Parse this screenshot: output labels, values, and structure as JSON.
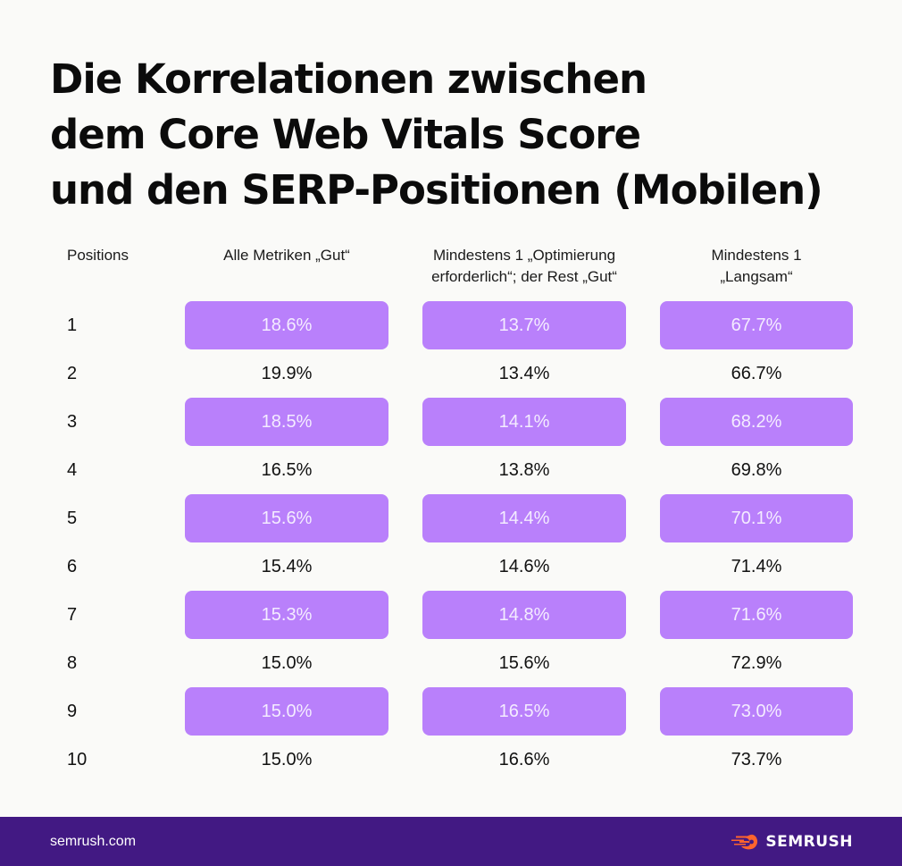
{
  "title": {
    "lines": [
      "Die Korrelationen zwischen",
      "dem Core Web Vitals Score",
      "und den SERP-Positionen (Mobilen)"
    ]
  },
  "colors": {
    "highlight": "#b980fb",
    "footer": "#421983",
    "logo_accent": "#ff642d"
  },
  "chart_data": {
    "type": "table",
    "title": "Die Korrelationen zwischen dem Core Web Vitals Score und den SERP-Positionen (Mobilen)",
    "columns": [
      "Positions",
      "Alle Metriken „Gut“",
      "Mindestens 1 „Optimierung erforderlich“; der Rest „Gut“",
      "Mindestens 1 „Langsam“"
    ],
    "header_lines": {
      "positions": [
        "Positions"
      ],
      "c1": [
        "Alle Metriken „Gut“"
      ],
      "c2": [
        "Mindestens 1 „Optimierung",
        "erforderlich“; der Rest „Gut“"
      ],
      "c3": [
        "Mindestens 1",
        "„Langsam“"
      ]
    },
    "rows": [
      {
        "position": "1",
        "c1": "18.6%",
        "c2": "13.7%",
        "c3": "67.7%",
        "highlighted": true
      },
      {
        "position": "2",
        "c1": "19.9%",
        "c2": "13.4%",
        "c3": "66.7%",
        "highlighted": false
      },
      {
        "position": "3",
        "c1": "18.5%",
        "c2": "14.1%",
        "c3": "68.2%",
        "highlighted": true
      },
      {
        "position": "4",
        "c1": "16.5%",
        "c2": "13.8%",
        "c3": "69.8%",
        "highlighted": false
      },
      {
        "position": "5",
        "c1": "15.6%",
        "c2": "14.4%",
        "c3": "70.1%",
        "highlighted": true
      },
      {
        "position": "6",
        "c1": "15.4%",
        "c2": "14.6%",
        "c3": "71.4%",
        "highlighted": false
      },
      {
        "position": "7",
        "c1": "15.3%",
        "c2": "14.8%",
        "c3": "71.6%",
        "highlighted": true
      },
      {
        "position": "8",
        "c1": "15.0%",
        "c2": "15.6%",
        "c3": "72.9%",
        "highlighted": false
      },
      {
        "position": "9",
        "c1": "15.0%",
        "c2": "16.5%",
        "c3": "73.0%",
        "highlighted": true
      },
      {
        "position": "10",
        "c1": "15.0%",
        "c2": "16.6%",
        "c3": "73.7%",
        "highlighted": false
      }
    ]
  },
  "footer": {
    "url": "semrush.com",
    "logo_text": "SEMRUSH",
    "logo_icon": "semrush-flame-icon"
  }
}
